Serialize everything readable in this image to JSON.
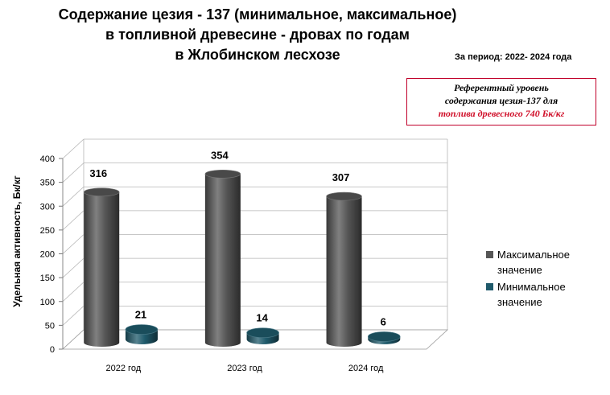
{
  "title_lines": [
    "Содержание цезия - 137 (минимальное,  максимальное)",
    "в топливной  древесине - дровах  по годам",
    "в Жлобинском  лесхозе"
  ],
  "period": "За период: 2022- 2024 года",
  "reference": {
    "line1": "Референтный уровень",
    "line2": "содержания цезия-137 для",
    "line3": "топлива древесного  740 Бк/кг"
  },
  "colors": {
    "max": "#565656",
    "min": "#1f5a6b",
    "reference_border": "#c0002a"
  },
  "chart_data": {
    "type": "bar",
    "style": "3d-cylinder",
    "categories": [
      "2022 год",
      "2023 год",
      "2024 год"
    ],
    "series": [
      {
        "name": "Максимальное значение",
        "values": [
          316,
          354,
          307
        ]
      },
      {
        "name": "Минимальное значение",
        "values": [
          21,
          14,
          6
        ]
      }
    ],
    "ylabel": "Удельная активность, Бк/кг",
    "xlabel": "",
    "ylim": [
      0,
      400
    ],
    "yticks": [
      0,
      50,
      100,
      150,
      200,
      250,
      300,
      350,
      400
    ],
    "grid": true,
    "legend": "right"
  }
}
